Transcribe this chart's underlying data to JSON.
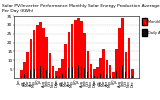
{
  "title": "Solar PV/Inverter Performance Monthly Solar Energy Production Average Per Day (KWh)",
  "title_fontsize": 3.2,
  "bar_color_main": "#FF0000",
  "bar_color_secondary": "#111111",
  "background_color": "#FFFFFF",
  "grid_color": "#BBBBBB",
  "ylabel_fontsize": 3.0,
  "xlabel_fontsize": 2.5,
  "ylim": [
    0,
    35
  ],
  "yticks": [
    5,
    10,
    15,
    20,
    25,
    30,
    35
  ],
  "months": [
    "Jan",
    "Feb",
    "Mar",
    "Apr",
    "May",
    "Jun",
    "Jul",
    "Aug",
    "Sep",
    "Oct",
    "Nov",
    "Dec",
    "Jan",
    "Feb",
    "Mar",
    "Apr",
    "May",
    "Jun",
    "Jul",
    "Aug",
    "Sep",
    "Oct",
    "Nov",
    "Dec",
    "Jan",
    "Feb",
    "Mar",
    "Apr",
    "May",
    "Jun",
    "Jul",
    "Aug",
    "Sep",
    "Oct",
    "Nov",
    "Dec"
  ],
  "years": [
    "08",
    "",
    "",
    "",
    "",
    "",
    "",
    "",
    "",
    "",
    "",
    "",
    "09",
    "",
    "",
    "",
    "",
    "",
    "",
    "",
    "",
    "",
    "",
    "",
    "10",
    "",
    "",
    "",
    "",
    "",
    "",
    "",
    "",
    "",
    "",
    ""
  ],
  "monthly_values": [
    4.5,
    9.0,
    14.5,
    22.0,
    27.0,
    30.0,
    31.5,
    28.5,
    23.0,
    14.0,
    6.5,
    3.8,
    5.5,
    10.5,
    19.0,
    26.0,
    30.5,
    32.5,
    34.0,
    32.0,
    25.5,
    15.5,
    8.0,
    5.0,
    6.0,
    11.5,
    16.5,
    10.0,
    7.5,
    3.5,
    16.5,
    28.5,
    34.0,
    14.5,
    22.5,
    5.0
  ],
  "daily_avg_values": [
    1.2,
    2.2,
    3.2,
    4.5,
    5.0,
    6.0,
    6.5,
    5.5,
    4.5,
    2.8,
    1.3,
    0.9,
    1.3,
    2.3,
    4.2,
    5.5,
    6.0,
    7.0,
    7.5,
    7.0,
    5.5,
    3.2,
    1.8,
    1.3,
    1.3,
    2.3,
    3.8,
    2.3,
    1.3,
    0.7,
    3.8,
    6.0,
    7.5,
    3.2,
    4.5,
    1.3
  ],
  "legend_labels": [
    "Monthly KWh",
    "Daily Avg"
  ],
  "legend_colors": [
    "#FF0000",
    "#111111"
  ]
}
